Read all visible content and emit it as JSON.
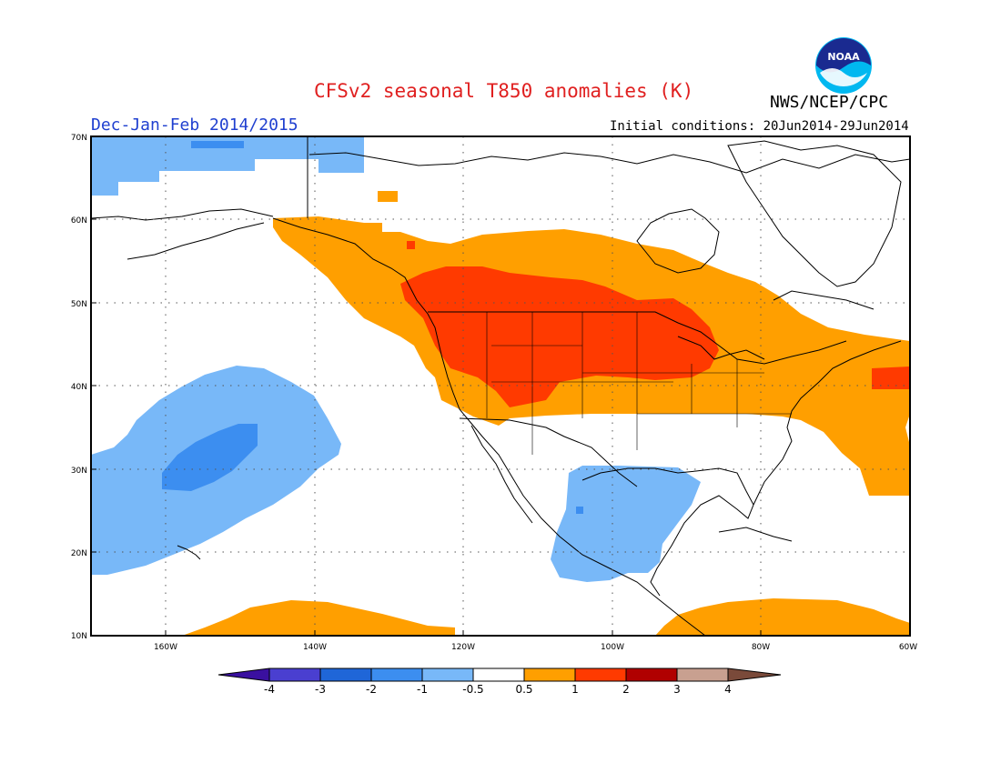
{
  "title": "CFSv2 seasonal T850 anomalies (K)",
  "agency": "NWS/NCEP/CPC",
  "logo_text": "NOAA",
  "season_label": "Dec-Jan-Feb 2014/2015",
  "initial_conditions": "Initial conditions: 20Jun2014-29Jun2014",
  "map": {
    "lon_range": [
      -170,
      -60
    ],
    "lat_range": [
      10,
      70
    ],
    "lat_labels": [
      "70N",
      "60N",
      "50N",
      "40N",
      "30N",
      "20N",
      "10N"
    ],
    "lon_labels": [
      "160W",
      "140W",
      "120W",
      "100W",
      "80W",
      "60W"
    ],
    "grid": true
  },
  "colorbar": {
    "tick_labels": [
      "-4",
      "-3",
      "-2",
      "-1",
      "-0.5",
      "0.5",
      "1",
      "2",
      "3",
      "4"
    ],
    "colors": [
      "#3a10a0",
      "#4a3fd0",
      "#1f66d8",
      "#3c8ef0",
      "#78b8f8",
      "#ffffff",
      "#ff9f00",
      "#ff3a00",
      "#b00000",
      "#c8a090",
      "#7a4a3a"
    ]
  },
  "colors": {
    "title": "#e02020",
    "season": "#2040d0",
    "light_blue": "#78b8f8",
    "mid_blue": "#3c8ef0",
    "orange": "#ff9f00",
    "red": "#ff3a00"
  }
}
